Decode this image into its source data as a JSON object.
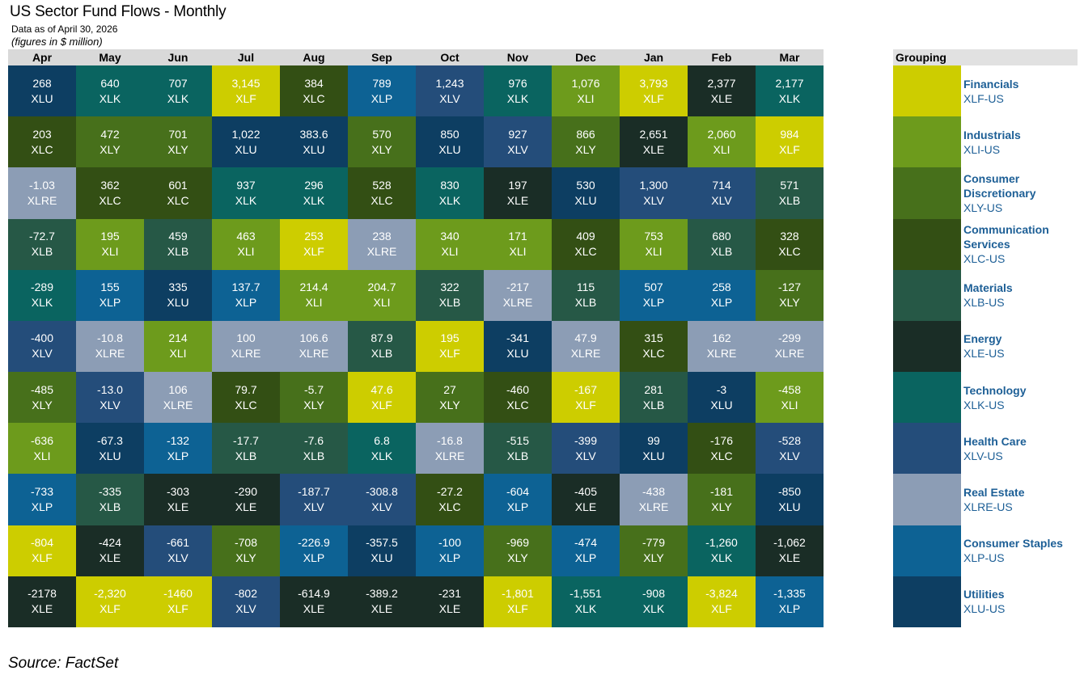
{
  "title": "US Sector Fund Flows - Monthly",
  "subtitle": "Data as of April 30, 2026",
  "units": "(figures in $ million)",
  "source": "Source: FactSet",
  "legend_title": "Grouping",
  "groups": [
    {
      "ticker": "XLF",
      "name": "Financials",
      "code": "XLF-US",
      "color": "#cdcd00"
    },
    {
      "ticker": "XLI",
      "name": "Industrials",
      "code": "XLI-US",
      "color": "#6d9b1c"
    },
    {
      "ticker": "XLY",
      "name": "Consumer Discretionary",
      "code": "XLY-US",
      "color": "#47701b"
    },
    {
      "ticker": "XLC",
      "name": "Communication Services",
      "code": "XLC-US",
      "color": "#334f14"
    },
    {
      "ticker": "XLB",
      "name": "Materials",
      "code": "XLB-US",
      "color": "#265846"
    },
    {
      "ticker": "XLE",
      "name": "Energy",
      "code": "XLE-US",
      "color": "#1a2d26"
    },
    {
      "ticker": "XLK",
      "name": "Technology",
      "code": "XLK-US",
      "color": "#0a6460"
    },
    {
      "ticker": "XLV",
      "name": "Health Care",
      "code": "XLV-US",
      "color": "#244d7a"
    },
    {
      "ticker": "XLRE",
      "name": "Real Estate",
      "code": "XLRE-US",
      "color": "#8c9db5"
    },
    {
      "ticker": "XLP",
      "name": "Consumer Staples",
      "code": "XLP-US",
      "color": "#0d6294"
    },
    {
      "ticker": "XLU",
      "name": "Utilities",
      "code": "XLU-US",
      "color": "#0d3e62"
    }
  ],
  "chart_data": {
    "type": "heatmap",
    "title": "US Sector Fund Flows - Monthly",
    "columns": [
      "Apr",
      "May",
      "Jun",
      "Jul",
      "Aug",
      "Sep",
      "Oct",
      "Nov",
      "Dec",
      "Jan",
      "Feb",
      "Mar"
    ],
    "cells": [
      [
        {
          "value": "268",
          "ticker": "XLU"
        },
        {
          "value": "203",
          "ticker": "XLC"
        },
        {
          "value": "-1.03",
          "ticker": "XLRE"
        },
        {
          "value": "-72.7",
          "ticker": "XLB"
        },
        {
          "value": "-289",
          "ticker": "XLK"
        },
        {
          "value": "-400",
          "ticker": "XLV"
        },
        {
          "value": "-485",
          "ticker": "XLY"
        },
        {
          "value": "-636",
          "ticker": "XLI"
        },
        {
          "value": "-733",
          "ticker": "XLP"
        },
        {
          "value": "-804",
          "ticker": "XLF"
        },
        {
          "value": "-2178",
          "ticker": "XLE"
        }
      ],
      [
        {
          "value": "640",
          "ticker": "XLK"
        },
        {
          "value": "472",
          "ticker": "XLY"
        },
        {
          "value": "362",
          "ticker": "XLC"
        },
        {
          "value": "195",
          "ticker": "XLI"
        },
        {
          "value": "155",
          "ticker": "XLP"
        },
        {
          "value": "-10.8",
          "ticker": "XLRE"
        },
        {
          "value": "-13.0",
          "ticker": "XLV"
        },
        {
          "value": "-67.3",
          "ticker": "XLU"
        },
        {
          "value": "-335",
          "ticker": "XLB"
        },
        {
          "value": "-424",
          "ticker": "XLE"
        },
        {
          "value": "-2,320",
          "ticker": "XLF"
        }
      ],
      [
        {
          "value": "707",
          "ticker": "XLK"
        },
        {
          "value": "701",
          "ticker": "XLY"
        },
        {
          "value": "601",
          "ticker": "XLC"
        },
        {
          "value": "459",
          "ticker": "XLB"
        },
        {
          "value": "335",
          "ticker": "XLU"
        },
        {
          "value": "214",
          "ticker": "XLI"
        },
        {
          "value": "106",
          "ticker": "XLRE"
        },
        {
          "value": "-132",
          "ticker": "XLP"
        },
        {
          "value": "-303",
          "ticker": "XLE"
        },
        {
          "value": "-661",
          "ticker": "XLV"
        },
        {
          "value": "-1460",
          "ticker": "XLF"
        }
      ],
      [
        {
          "value": "3,145",
          "ticker": "XLF"
        },
        {
          "value": "1,022",
          "ticker": "XLU"
        },
        {
          "value": "937",
          "ticker": "XLK"
        },
        {
          "value": "463",
          "ticker": "XLI"
        },
        {
          "value": "137.7",
          "ticker": "XLP"
        },
        {
          "value": "100",
          "ticker": "XLRE"
        },
        {
          "value": "79.7",
          "ticker": "XLC"
        },
        {
          "value": "-17.7",
          "ticker": "XLB"
        },
        {
          "value": "-290",
          "ticker": "XLE"
        },
        {
          "value": "-708",
          "ticker": "XLY"
        },
        {
          "value": "-802",
          "ticker": "XLV"
        }
      ],
      [
        {
          "value": "384",
          "ticker": "XLC"
        },
        {
          "value": "383.6",
          "ticker": "XLU"
        },
        {
          "value": "296",
          "ticker": "XLK"
        },
        {
          "value": "253",
          "ticker": "XLF"
        },
        {
          "value": "214.4",
          "ticker": "XLI"
        },
        {
          "value": "106.6",
          "ticker": "XLRE"
        },
        {
          "value": "-5.7",
          "ticker": "XLY"
        },
        {
          "value": "-7.6",
          "ticker": "XLB"
        },
        {
          "value": "-187.7",
          "ticker": "XLV"
        },
        {
          "value": "-226.9",
          "ticker": "XLP"
        },
        {
          "value": "-614.9",
          "ticker": "XLE"
        }
      ],
      [
        {
          "value": "789",
          "ticker": "XLP"
        },
        {
          "value": "570",
          "ticker": "XLY"
        },
        {
          "value": "528",
          "ticker": "XLC"
        },
        {
          "value": "238",
          "ticker": "XLRE"
        },
        {
          "value": "204.7",
          "ticker": "XLI"
        },
        {
          "value": "87.9",
          "ticker": "XLB"
        },
        {
          "value": "47.6",
          "ticker": "XLF"
        },
        {
          "value": "6.8",
          "ticker": "XLK"
        },
        {
          "value": "-308.8",
          "ticker": "XLV"
        },
        {
          "value": "-357.5",
          "ticker": "XLU"
        },
        {
          "value": "-389.2",
          "ticker": "XLE"
        }
      ],
      [
        {
          "value": "1,243",
          "ticker": "XLV"
        },
        {
          "value": "850",
          "ticker": "XLU"
        },
        {
          "value": "830",
          "ticker": "XLK"
        },
        {
          "value": "340",
          "ticker": "XLI"
        },
        {
          "value": "322",
          "ticker": "XLB"
        },
        {
          "value": "195",
          "ticker": "XLF"
        },
        {
          "value": "27",
          "ticker": "XLY"
        },
        {
          "value": "-16.8",
          "ticker": "XLRE"
        },
        {
          "value": "-27.2",
          "ticker": "XLC"
        },
        {
          "value": "-100",
          "ticker": "XLP"
        },
        {
          "value": "-231",
          "ticker": "XLE"
        }
      ],
      [
        {
          "value": "976",
          "ticker": "XLK"
        },
        {
          "value": "927",
          "ticker": "XLV"
        },
        {
          "value": "197",
          "ticker": "XLE"
        },
        {
          "value": "171",
          "ticker": "XLI"
        },
        {
          "value": "-217",
          "ticker": "XLRE"
        },
        {
          "value": "-341",
          "ticker": "XLU"
        },
        {
          "value": "-460",
          "ticker": "XLC"
        },
        {
          "value": "-515",
          "ticker": "XLB"
        },
        {
          "value": "-604",
          "ticker": "XLP"
        },
        {
          "value": "-969",
          "ticker": "XLY"
        },
        {
          "value": "-1,801",
          "ticker": "XLF"
        }
      ],
      [
        {
          "value": "1,076",
          "ticker": "XLI"
        },
        {
          "value": "866",
          "ticker": "XLY"
        },
        {
          "value": "530",
          "ticker": "XLU"
        },
        {
          "value": "409",
          "ticker": "XLC"
        },
        {
          "value": "115",
          "ticker": "XLB"
        },
        {
          "value": "47.9",
          "ticker": "XLRE"
        },
        {
          "value": "-167",
          "ticker": "XLF"
        },
        {
          "value": "-399",
          "ticker": "XLV"
        },
        {
          "value": "-405",
          "ticker": "XLE"
        },
        {
          "value": "-474",
          "ticker": "XLP"
        },
        {
          "value": "-1,551",
          "ticker": "XLK"
        }
      ],
      [
        {
          "value": "3,793",
          "ticker": "XLF"
        },
        {
          "value": "2,651",
          "ticker": "XLE"
        },
        {
          "value": "1,300",
          "ticker": "XLV"
        },
        {
          "value": "753",
          "ticker": "XLI"
        },
        {
          "value": "507",
          "ticker": "XLP"
        },
        {
          "value": "315",
          "ticker": "XLC"
        },
        {
          "value": "281",
          "ticker": "XLB"
        },
        {
          "value": "99",
          "ticker": "XLU"
        },
        {
          "value": "-438",
          "ticker": "XLRE"
        },
        {
          "value": "-779",
          "ticker": "XLY"
        },
        {
          "value": "-908",
          "ticker": "XLK"
        }
      ],
      [
        {
          "value": "2,377",
          "ticker": "XLE"
        },
        {
          "value": "2,060",
          "ticker": "XLI"
        },
        {
          "value": "714",
          "ticker": "XLV"
        },
        {
          "value": "680",
          "ticker": "XLB"
        },
        {
          "value": "258",
          "ticker": "XLP"
        },
        {
          "value": "162",
          "ticker": "XLRE"
        },
        {
          "value": "-3",
          "ticker": "XLU"
        },
        {
          "value": "-176",
          "ticker": "XLC"
        },
        {
          "value": "-181",
          "ticker": "XLY"
        },
        {
          "value": "-1,260",
          "ticker": "XLK"
        },
        {
          "value": "-3,824",
          "ticker": "XLF"
        }
      ],
      [
        {
          "value": "2,177",
          "ticker": "XLK"
        },
        {
          "value": "984",
          "ticker": "XLF"
        },
        {
          "value": "571",
          "ticker": "XLB"
        },
        {
          "value": "328",
          "ticker": "XLC"
        },
        {
          "value": "-127",
          "ticker": "XLY"
        },
        {
          "value": "-299",
          "ticker": "XLRE"
        },
        {
          "value": "-458",
          "ticker": "XLI"
        },
        {
          "value": "-528",
          "ticker": "XLV"
        },
        {
          "value": "-850",
          "ticker": "XLU"
        },
        {
          "value": "-1,062",
          "ticker": "XLE"
        },
        {
          "value": "-1,335",
          "ticker": "XLP"
        }
      ]
    ]
  }
}
